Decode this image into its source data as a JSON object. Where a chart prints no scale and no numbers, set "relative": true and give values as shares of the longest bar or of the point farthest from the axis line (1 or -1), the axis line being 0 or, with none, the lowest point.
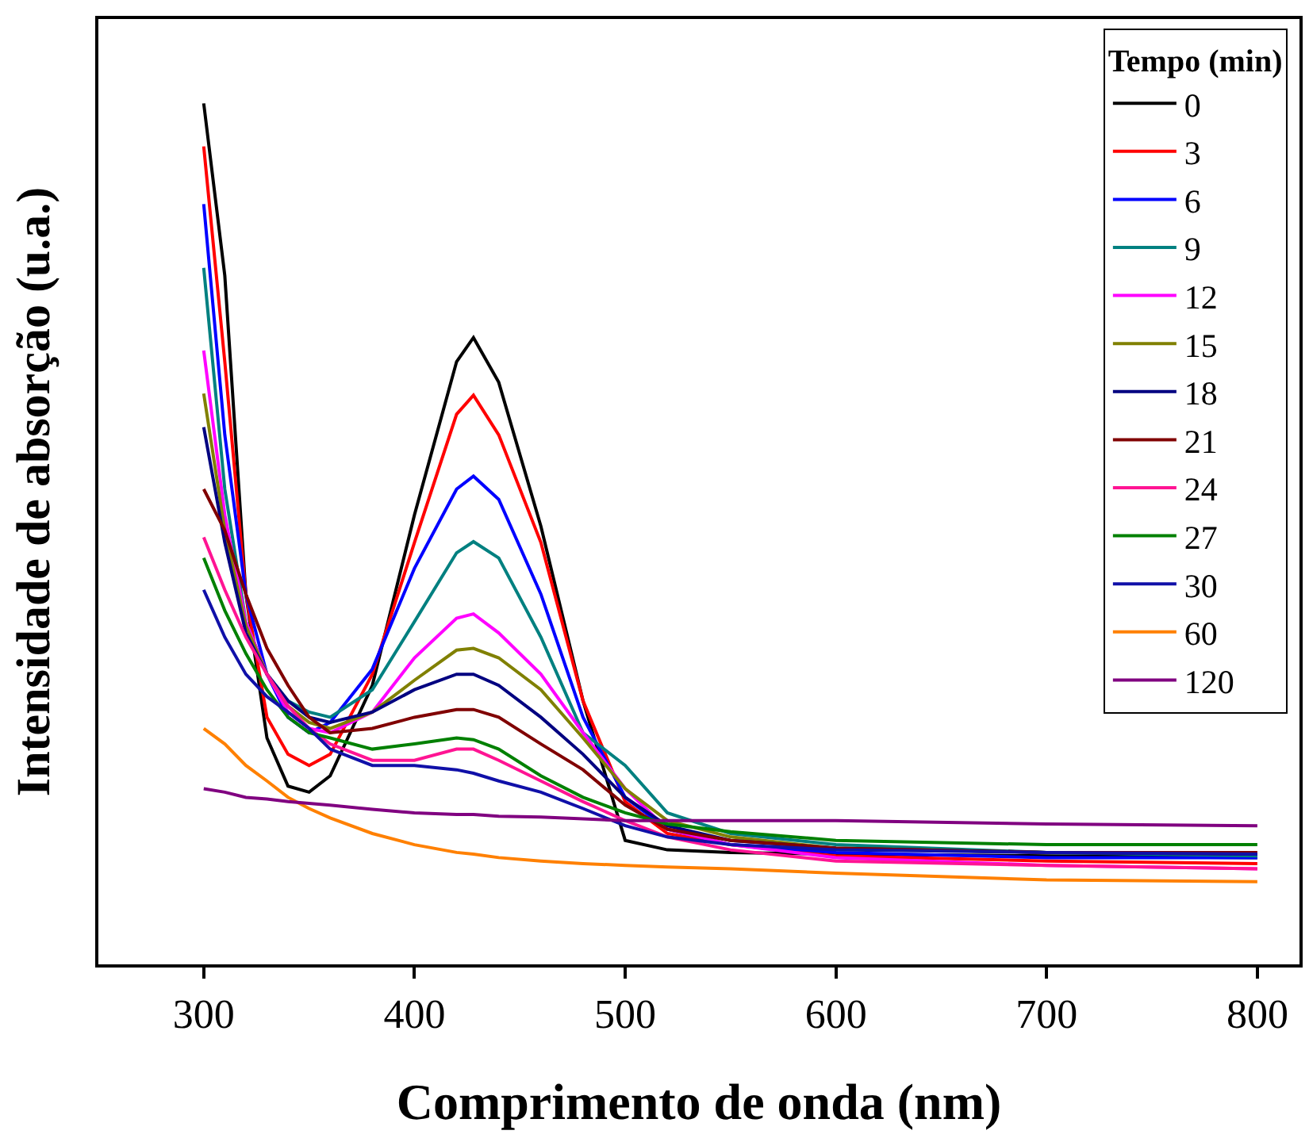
{
  "chart_data": {
    "type": "line",
    "relative": true,
    "xlabel": "Comprimento de onda (nm)",
    "ylabel": "Intensidade de absorção (u.a.)",
    "legend_title": "Tempo (min)",
    "legend": "top right",
    "tick_labels": "x",
    "line_style": "solid",
    "marker": "none",
    "x": [
      300,
      310,
      320,
      330,
      340,
      350,
      360,
      380,
      400,
      420,
      428,
      440,
      460,
      480,
      500,
      520,
      550,
      600,
      700,
      800
    ],
    "xlim": [
      250,
      820
    ],
    "xticks": [
      300,
      400,
      500,
      600,
      700,
      800
    ],
    "series": [
      {
        "name": "0",
        "color": "#000000",
        "values": [
          1.0,
          0.8,
          0.43,
          0.263,
          0.207,
          0.2,
          0.219,
          0.324,
          0.522,
          0.7,
          0.728,
          0.676,
          0.509,
          0.306,
          0.144,
          0.133,
          0.13,
          0.128,
          0.126,
          0.124
        ]
      },
      {
        "name": "3",
        "color": "#ff0000",
        "values": [
          0.95,
          0.7,
          0.43,
          0.287,
          0.244,
          0.231,
          0.244,
          0.337,
          0.49,
          0.639,
          0.661,
          0.615,
          0.49,
          0.306,
          0.189,
          0.152,
          0.139,
          0.126,
          0.12,
          0.117
        ]
      },
      {
        "name": "6",
        "color": "#0000ff",
        "values": [
          0.883,
          0.615,
          0.43,
          0.337,
          0.287,
          0.269,
          0.281,
          0.343,
          0.46,
          0.552,
          0.567,
          0.54,
          0.43,
          0.287,
          0.194,
          0.157,
          0.139,
          0.13,
          0.124,
          0.124
        ]
      },
      {
        "name": "9",
        "color": "#008080",
        "values": [
          0.809,
          0.552,
          0.398,
          0.337,
          0.306,
          0.293,
          0.287,
          0.319,
          0.398,
          0.478,
          0.491,
          0.472,
          0.38,
          0.269,
          0.231,
          0.176,
          0.152,
          0.139,
          0.13,
          0.126
        ]
      },
      {
        "name": "12",
        "color": "#ff00ff",
        "values": [
          0.713,
          0.522,
          0.398,
          0.337,
          0.293,
          0.274,
          0.269,
          0.293,
          0.356,
          0.402,
          0.407,
          0.385,
          0.337,
          0.269,
          0.204,
          0.157,
          0.139,
          0.124,
          0.115,
          0.111
        ]
      },
      {
        "name": "15",
        "color": "#808000",
        "values": [
          0.663,
          0.504,
          0.393,
          0.337,
          0.3,
          0.281,
          0.274,
          0.293,
          0.33,
          0.365,
          0.367,
          0.356,
          0.319,
          0.263,
          0.204,
          0.167,
          0.148,
          0.135,
          0.13,
          0.128
        ]
      },
      {
        "name": "18",
        "color": "#000080",
        "values": [
          0.624,
          0.49,
          0.385,
          0.337,
          0.306,
          0.287,
          0.281,
          0.293,
          0.319,
          0.337,
          0.337,
          0.324,
          0.287,
          0.244,
          0.194,
          0.161,
          0.144,
          0.135,
          0.13,
          0.128
        ]
      },
      {
        "name": "21",
        "color": "#800000",
        "values": [
          0.552,
          0.504,
          0.43,
          0.367,
          0.324,
          0.287,
          0.269,
          0.274,
          0.287,
          0.296,
          0.296,
          0.287,
          0.256,
          0.226,
          0.185,
          0.157,
          0.144,
          0.135,
          0.13,
          0.13
        ]
      },
      {
        "name": "24",
        "color": "#ff1493",
        "values": [
          0.496,
          0.435,
          0.38,
          0.337,
          0.3,
          0.274,
          0.256,
          0.237,
          0.237,
          0.25,
          0.25,
          0.237,
          0.213,
          0.189,
          0.167,
          0.148,
          0.133,
          0.12,
          0.115,
          0.111
        ]
      },
      {
        "name": "27",
        "color": "#008000",
        "values": [
          0.472,
          0.411,
          0.361,
          0.319,
          0.287,
          0.269,
          0.263,
          0.25,
          0.256,
          0.263,
          0.261,
          0.25,
          0.219,
          0.194,
          0.176,
          0.163,
          0.154,
          0.144,
          0.139,
          0.139
        ]
      },
      {
        "name": "30",
        "color": "#1010a8",
        "values": [
          0.435,
          0.38,
          0.337,
          0.311,
          0.293,
          0.274,
          0.25,
          0.231,
          0.231,
          0.226,
          0.222,
          0.213,
          0.2,
          0.181,
          0.161,
          0.148,
          0.139,
          0.133,
          0.13,
          0.128
        ]
      },
      {
        "name": "60",
        "color": "#ff8000",
        "values": [
          0.274,
          0.256,
          0.231,
          0.213,
          0.194,
          0.181,
          0.17,
          0.152,
          0.139,
          0.13,
          0.128,
          0.124,
          0.12,
          0.117,
          0.115,
          0.113,
          0.111,
          0.106,
          0.098,
          0.096
        ]
      },
      {
        "name": "120",
        "color": "#800080",
        "values": [
          0.204,
          0.2,
          0.194,
          0.192,
          0.189,
          0.187,
          0.185,
          0.18,
          0.176,
          0.174,
          0.174,
          0.172,
          0.171,
          0.169,
          0.167,
          0.167,
          0.167,
          0.167,
          0.163,
          0.161
        ]
      }
    ]
  }
}
